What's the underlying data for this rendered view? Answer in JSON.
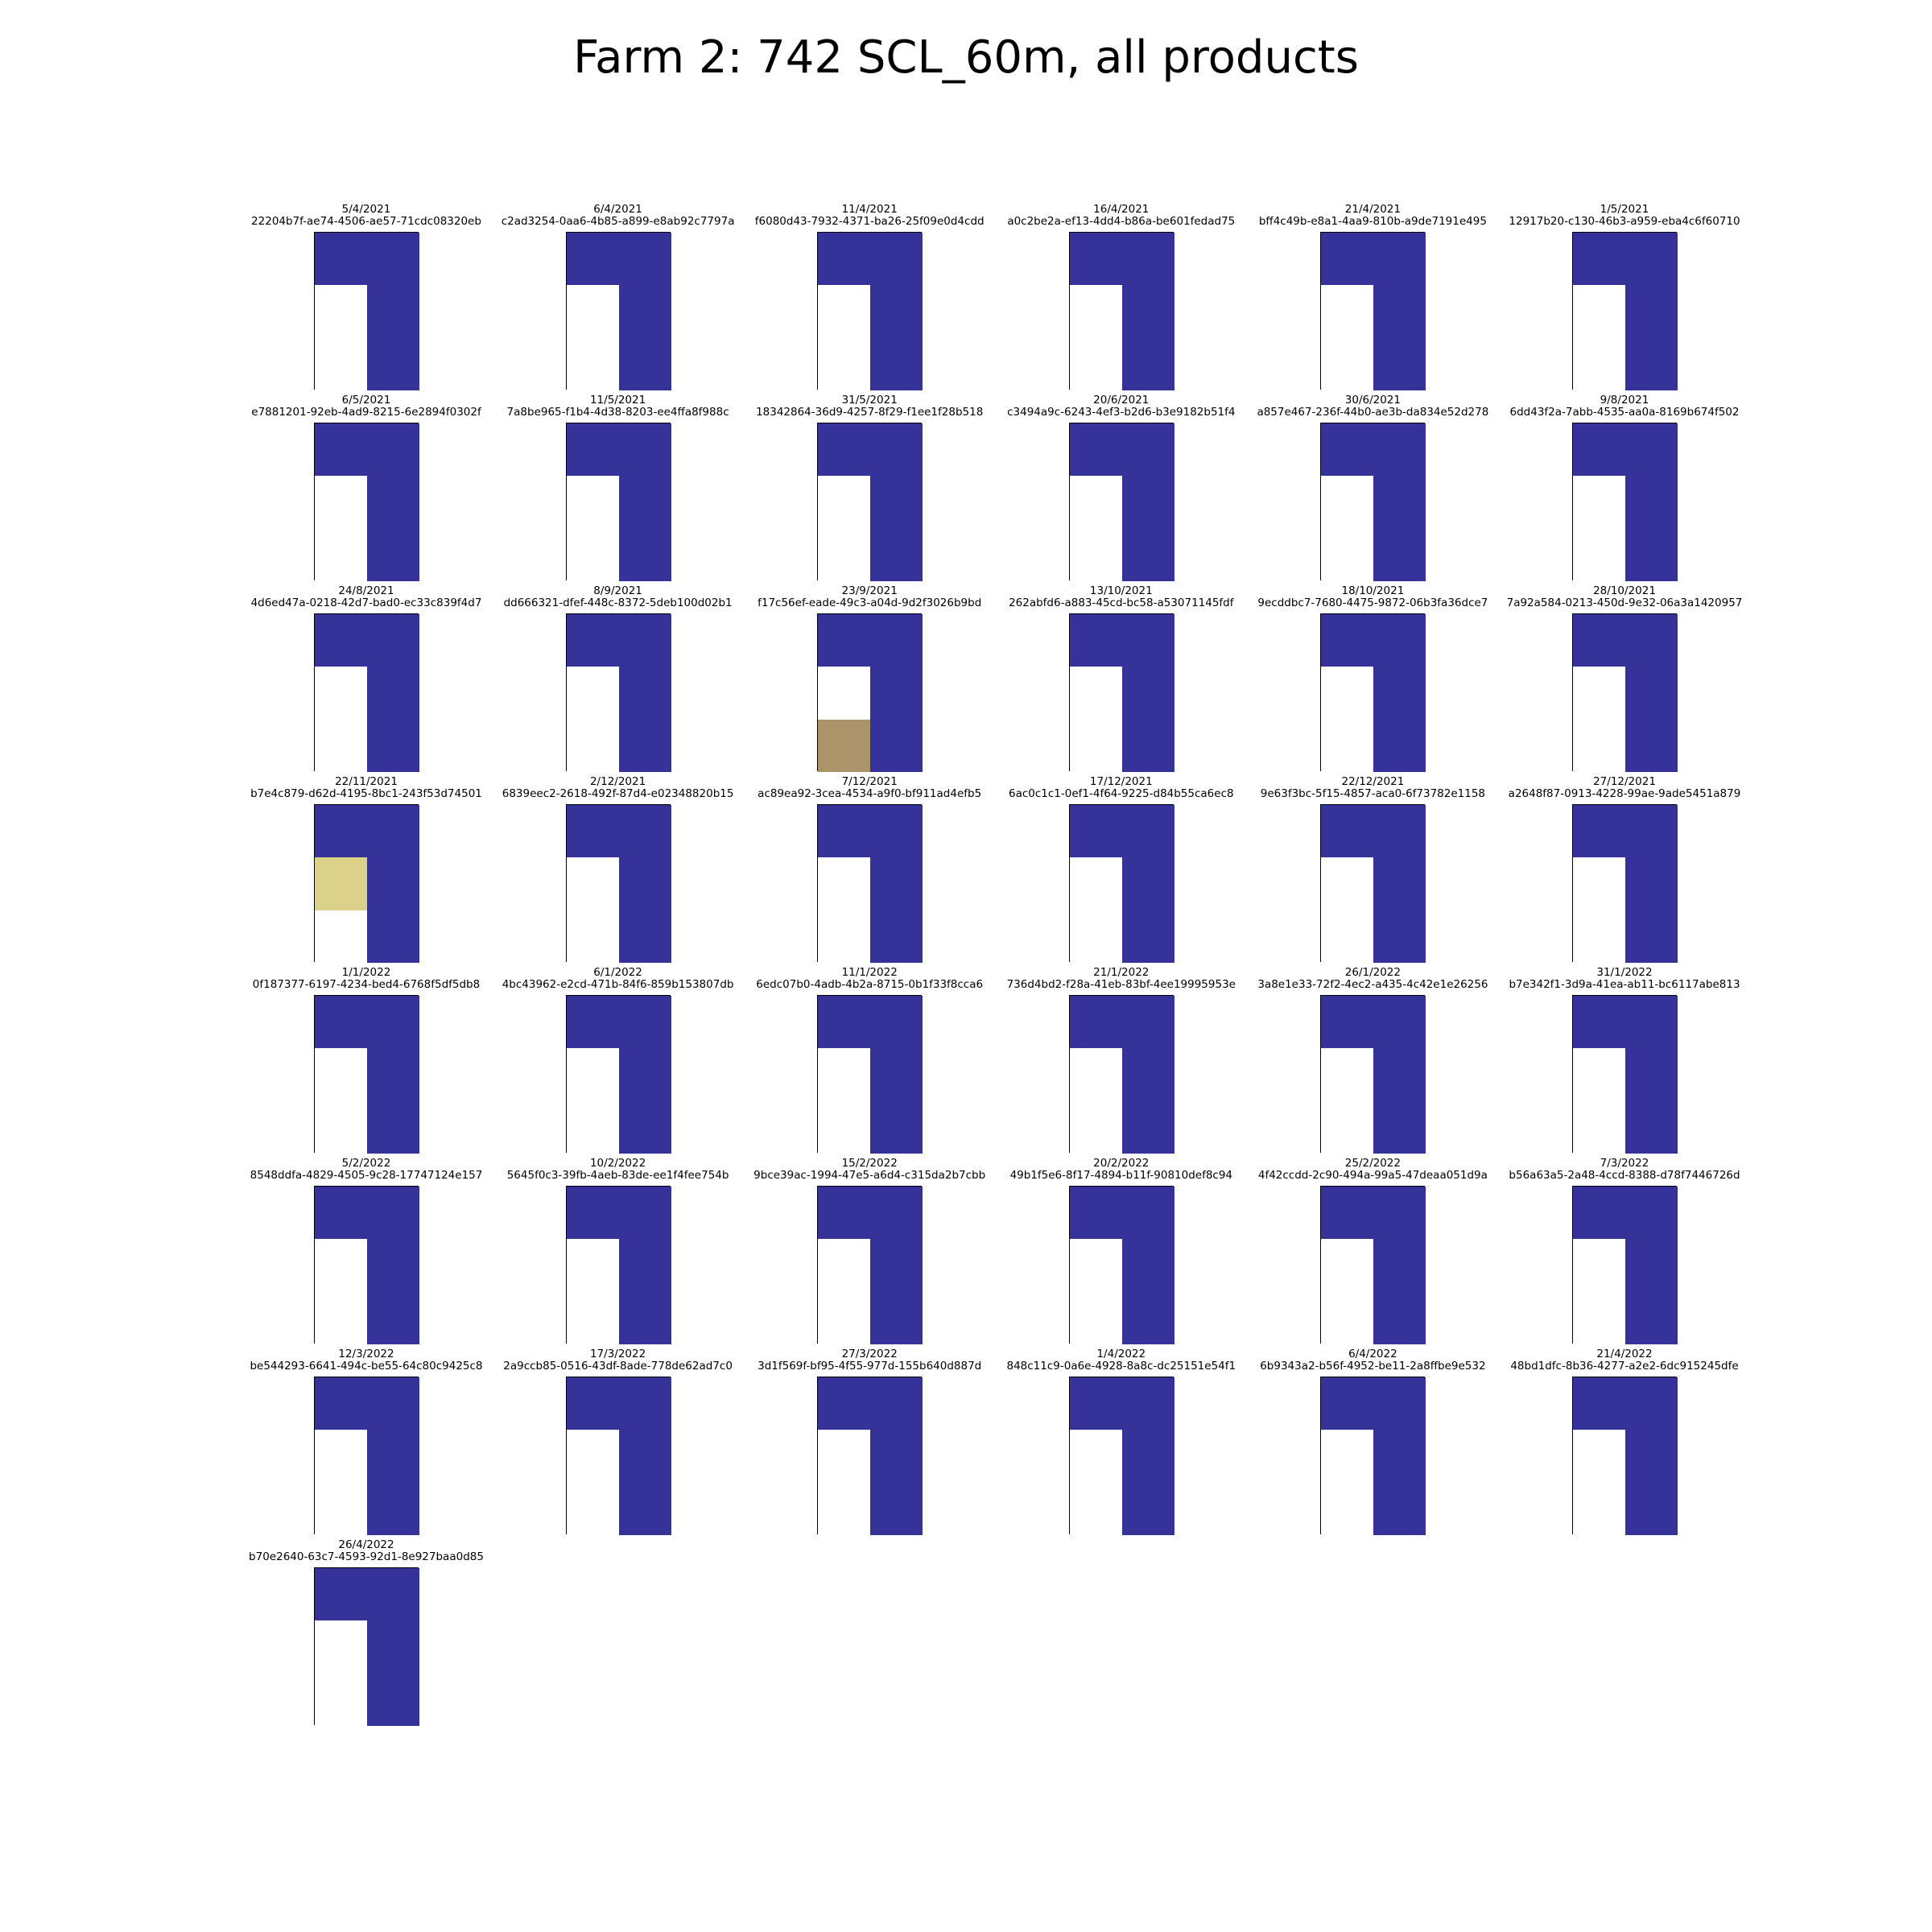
{
  "chart_data": {
    "type": "heatmap",
    "title": "Farm 2: 742 SCL_60m, all products",
    "grid": false,
    "colors": {
      "blue": "#353399",
      "white": "#ffffff",
      "brown": "#ac946a",
      "yellow": "#dcd189"
    },
    "panels": [
      {
        "date": "5/4/2021",
        "id": "22204b7f-ae74-4506-ae57-71cdc08320eb",
        "cells": [
          [
            "blue",
            "blue"
          ],
          [
            "white",
            "blue"
          ],
          [
            "white",
            "blue"
          ]
        ]
      },
      {
        "date": "6/4/2021",
        "id": "c2ad3254-0aa6-4b85-a899-e8ab92c7797a",
        "cells": [
          [
            "blue",
            "blue"
          ],
          [
            "white",
            "blue"
          ],
          [
            "white",
            "blue"
          ]
        ]
      },
      {
        "date": "11/4/2021",
        "id": "f6080d43-7932-4371-ba26-25f09e0d4cdd",
        "cells": [
          [
            "blue",
            "blue"
          ],
          [
            "white",
            "blue"
          ],
          [
            "white",
            "blue"
          ]
        ]
      },
      {
        "date": "16/4/2021",
        "id": "a0c2be2a-ef13-4dd4-b86a-be601fedad75",
        "cells": [
          [
            "blue",
            "blue"
          ],
          [
            "white",
            "blue"
          ],
          [
            "white",
            "blue"
          ]
        ]
      },
      {
        "date": "21/4/2021",
        "id": "bff4c49b-e8a1-4aa9-810b-a9de7191e495",
        "cells": [
          [
            "blue",
            "blue"
          ],
          [
            "white",
            "blue"
          ],
          [
            "white",
            "blue"
          ]
        ]
      },
      {
        "date": "1/5/2021",
        "id": "12917b20-c130-46b3-a959-eba4c6f60710",
        "cells": [
          [
            "blue",
            "blue"
          ],
          [
            "white",
            "blue"
          ],
          [
            "white",
            "blue"
          ]
        ]
      },
      {
        "date": "6/5/2021",
        "id": "e7881201-92eb-4ad9-8215-6e2894f0302f",
        "cells": [
          [
            "blue",
            "blue"
          ],
          [
            "white",
            "blue"
          ],
          [
            "white",
            "blue"
          ]
        ]
      },
      {
        "date": "11/5/2021",
        "id": "7a8be965-f1b4-4d38-8203-ee4ffa8f988c",
        "cells": [
          [
            "blue",
            "blue"
          ],
          [
            "white",
            "blue"
          ],
          [
            "white",
            "blue"
          ]
        ]
      },
      {
        "date": "31/5/2021",
        "id": "18342864-36d9-4257-8f29-f1ee1f28b518",
        "cells": [
          [
            "blue",
            "blue"
          ],
          [
            "white",
            "blue"
          ],
          [
            "white",
            "blue"
          ]
        ]
      },
      {
        "date": "20/6/2021",
        "id": "c3494a9c-6243-4ef3-b2d6-b3e9182b51f4",
        "cells": [
          [
            "blue",
            "blue"
          ],
          [
            "white",
            "blue"
          ],
          [
            "white",
            "blue"
          ]
        ]
      },
      {
        "date": "30/6/2021",
        "id": "a857e467-236f-44b0-ae3b-da834e52d278",
        "cells": [
          [
            "blue",
            "blue"
          ],
          [
            "white",
            "blue"
          ],
          [
            "white",
            "blue"
          ]
        ]
      },
      {
        "date": "9/8/2021",
        "id": "6dd43f2a-7abb-4535-aa0a-8169b674f502",
        "cells": [
          [
            "blue",
            "blue"
          ],
          [
            "white",
            "blue"
          ],
          [
            "white",
            "blue"
          ]
        ]
      },
      {
        "date": "24/8/2021",
        "id": "4d6ed47a-0218-42d7-bad0-ec33c839f4d7",
        "cells": [
          [
            "blue",
            "blue"
          ],
          [
            "white",
            "blue"
          ],
          [
            "white",
            "blue"
          ]
        ]
      },
      {
        "date": "8/9/2021",
        "id": "dd666321-dfef-448c-8372-5deb100d02b1",
        "cells": [
          [
            "blue",
            "blue"
          ],
          [
            "white",
            "blue"
          ],
          [
            "white",
            "blue"
          ]
        ]
      },
      {
        "date": "23/9/2021",
        "id": "f17c56ef-eade-49c3-a04d-9d2f3026b9bd",
        "cells": [
          [
            "blue",
            "blue"
          ],
          [
            "white",
            "blue"
          ],
          [
            "brown",
            "blue"
          ]
        ]
      },
      {
        "date": "13/10/2021",
        "id": "262abfd6-a883-45cd-bc58-a53071145fdf",
        "cells": [
          [
            "blue",
            "blue"
          ],
          [
            "white",
            "blue"
          ],
          [
            "white",
            "blue"
          ]
        ]
      },
      {
        "date": "18/10/2021",
        "id": "9ecddbc7-7680-4475-9872-06b3fa36dce7",
        "cells": [
          [
            "blue",
            "blue"
          ],
          [
            "white",
            "blue"
          ],
          [
            "white",
            "blue"
          ]
        ]
      },
      {
        "date": "28/10/2021",
        "id": "7a92a584-0213-450d-9e32-06a3a1420957",
        "cells": [
          [
            "blue",
            "blue"
          ],
          [
            "white",
            "blue"
          ],
          [
            "white",
            "blue"
          ]
        ]
      },
      {
        "date": "22/11/2021",
        "id": "b7e4c879-d62d-4195-8bc1-243f53d74501",
        "cells": [
          [
            "blue",
            "blue"
          ],
          [
            "yellow",
            "blue"
          ],
          [
            "white",
            "blue"
          ]
        ]
      },
      {
        "date": "2/12/2021",
        "id": "6839eec2-2618-492f-87d4-e02348820b15",
        "cells": [
          [
            "blue",
            "blue"
          ],
          [
            "white",
            "blue"
          ],
          [
            "white",
            "blue"
          ]
        ]
      },
      {
        "date": "7/12/2021",
        "id": "ac89ea92-3cea-4534-a9f0-bf911ad4efb5",
        "cells": [
          [
            "blue",
            "blue"
          ],
          [
            "white",
            "blue"
          ],
          [
            "white",
            "blue"
          ]
        ]
      },
      {
        "date": "17/12/2021",
        "id": "6ac0c1c1-0ef1-4f64-9225-d84b55ca6ec8",
        "cells": [
          [
            "blue",
            "blue"
          ],
          [
            "white",
            "blue"
          ],
          [
            "white",
            "blue"
          ]
        ]
      },
      {
        "date": "22/12/2021",
        "id": "9e63f3bc-5f15-4857-aca0-6f73782e1158",
        "cells": [
          [
            "blue",
            "blue"
          ],
          [
            "white",
            "blue"
          ],
          [
            "white",
            "blue"
          ]
        ]
      },
      {
        "date": "27/12/2021",
        "id": "a2648f87-0913-4228-99ae-9ade5451a879",
        "cells": [
          [
            "blue",
            "blue"
          ],
          [
            "white",
            "blue"
          ],
          [
            "white",
            "blue"
          ]
        ]
      },
      {
        "date": "1/1/2022",
        "id": "0f187377-6197-4234-bed4-6768f5df5db8",
        "cells": [
          [
            "blue",
            "blue"
          ],
          [
            "white",
            "blue"
          ],
          [
            "white",
            "blue"
          ]
        ]
      },
      {
        "date": "6/1/2022",
        "id": "4bc43962-e2cd-471b-84f6-859b153807db",
        "cells": [
          [
            "blue",
            "blue"
          ],
          [
            "white",
            "blue"
          ],
          [
            "white",
            "blue"
          ]
        ]
      },
      {
        "date": "11/1/2022",
        "id": "6edc07b0-4adb-4b2a-8715-0b1f33f8cca6",
        "cells": [
          [
            "blue",
            "blue"
          ],
          [
            "white",
            "blue"
          ],
          [
            "white",
            "blue"
          ]
        ]
      },
      {
        "date": "21/1/2022",
        "id": "736d4bd2-f28a-41eb-83bf-4ee19995953e",
        "cells": [
          [
            "blue",
            "blue"
          ],
          [
            "white",
            "blue"
          ],
          [
            "white",
            "blue"
          ]
        ]
      },
      {
        "date": "26/1/2022",
        "id": "3a8e1e33-72f2-4ec2-a435-4c42e1e26256",
        "cells": [
          [
            "blue",
            "blue"
          ],
          [
            "white",
            "blue"
          ],
          [
            "white",
            "blue"
          ]
        ]
      },
      {
        "date": "31/1/2022",
        "id": "b7e342f1-3d9a-41ea-ab11-bc6117abe813",
        "cells": [
          [
            "blue",
            "blue"
          ],
          [
            "white",
            "blue"
          ],
          [
            "white",
            "blue"
          ]
        ]
      },
      {
        "date": "5/2/2022",
        "id": "8548ddfa-4829-4505-9c28-17747124e157",
        "cells": [
          [
            "blue",
            "blue"
          ],
          [
            "white",
            "blue"
          ],
          [
            "white",
            "blue"
          ]
        ]
      },
      {
        "date": "10/2/2022",
        "id": "5645f0c3-39fb-4aeb-83de-ee1f4fee754b",
        "cells": [
          [
            "blue",
            "blue"
          ],
          [
            "white",
            "blue"
          ],
          [
            "white",
            "blue"
          ]
        ]
      },
      {
        "date": "15/2/2022",
        "id": "9bce39ac-1994-47e5-a6d4-c315da2b7cbb",
        "cells": [
          [
            "blue",
            "blue"
          ],
          [
            "white",
            "blue"
          ],
          [
            "white",
            "blue"
          ]
        ]
      },
      {
        "date": "20/2/2022",
        "id": "49b1f5e6-8f17-4894-b11f-90810def8c94",
        "cells": [
          [
            "blue",
            "blue"
          ],
          [
            "white",
            "blue"
          ],
          [
            "white",
            "blue"
          ]
        ]
      },
      {
        "date": "25/2/2022",
        "id": "4f42ccdd-2c90-494a-99a5-47deaa051d9a",
        "cells": [
          [
            "blue",
            "blue"
          ],
          [
            "white",
            "blue"
          ],
          [
            "white",
            "blue"
          ]
        ]
      },
      {
        "date": "7/3/2022",
        "id": "b56a63a5-2a48-4ccd-8388-d78f7446726d",
        "cells": [
          [
            "blue",
            "blue"
          ],
          [
            "white",
            "blue"
          ],
          [
            "white",
            "blue"
          ]
        ]
      },
      {
        "date": "12/3/2022",
        "id": "be544293-6641-494c-be55-64c80c9425c8",
        "cells": [
          [
            "blue",
            "blue"
          ],
          [
            "white",
            "blue"
          ],
          [
            "white",
            "blue"
          ]
        ]
      },
      {
        "date": "17/3/2022",
        "id": "2a9ccb85-0516-43df-8ade-778de62ad7c0",
        "cells": [
          [
            "blue",
            "blue"
          ],
          [
            "white",
            "blue"
          ],
          [
            "white",
            "blue"
          ]
        ]
      },
      {
        "date": "27/3/2022",
        "id": "3d1f569f-bf95-4f55-977d-155b640d887d",
        "cells": [
          [
            "blue",
            "blue"
          ],
          [
            "white",
            "blue"
          ],
          [
            "white",
            "blue"
          ]
        ]
      },
      {
        "date": "1/4/2022",
        "id": "848c11c9-0a6e-4928-8a8c-dc25151e54f1",
        "cells": [
          [
            "blue",
            "blue"
          ],
          [
            "white",
            "blue"
          ],
          [
            "white",
            "blue"
          ]
        ]
      },
      {
        "date": "6/4/2022",
        "id": "6b9343a2-b56f-4952-be11-2a8ffbe9e532",
        "cells": [
          [
            "blue",
            "blue"
          ],
          [
            "white",
            "blue"
          ],
          [
            "white",
            "blue"
          ]
        ]
      },
      {
        "date": "21/4/2022",
        "id": "48bd1dfc-8b36-4277-a2e2-6dc915245dfe",
        "cells": [
          [
            "blue",
            "blue"
          ],
          [
            "white",
            "blue"
          ],
          [
            "white",
            "blue"
          ]
        ]
      },
      {
        "date": "26/4/2022",
        "id": "b70e2640-63c7-4593-92d1-8e927baa0d85",
        "cells": [
          [
            "blue",
            "blue"
          ],
          [
            "white",
            "blue"
          ],
          [
            "white",
            "blue"
          ]
        ]
      }
    ]
  }
}
